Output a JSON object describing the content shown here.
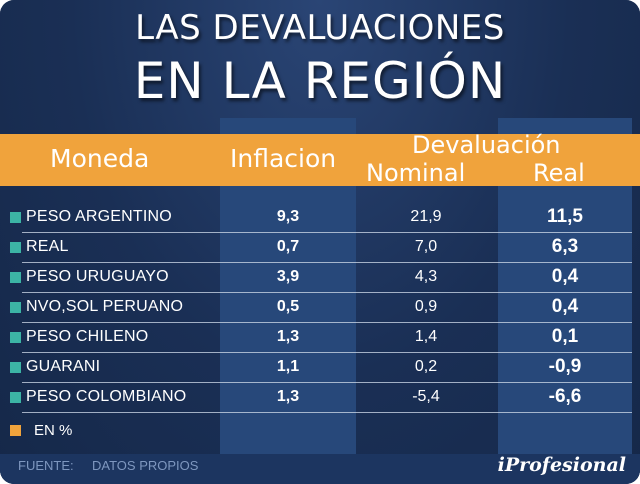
{
  "title": {
    "line1": "LAS DEVALUACIONES",
    "line2": "EN LA REGIÓN"
  },
  "chart_data": {
    "type": "table",
    "columns": {
      "moneda": "Moneda",
      "inflacion": "Inflacion",
      "devaluacion": "Devaluación",
      "nominal": "Nominal",
      "real": "Real"
    },
    "rows": [
      {
        "moneda": "PESO ARGENTINO",
        "inflacion": "9,3",
        "nominal": "21,9",
        "real": "11,5"
      },
      {
        "moneda": "REAL",
        "inflacion": "0,7",
        "nominal": "7,0",
        "real": "6,3"
      },
      {
        "moneda": "PESO URUGUAYO",
        "inflacion": "3,9",
        "nominal": "4,3",
        "real": "0,4"
      },
      {
        "moneda": "NVO,SOL PERUANO",
        "inflacion": "0,5",
        "nominal": "0,9",
        "real": "0,4"
      },
      {
        "moneda": "PESO CHILENO",
        "inflacion": "1,3",
        "nominal": "1,4",
        "real": "0,1"
      },
      {
        "moneda": "GUARANI",
        "inflacion": "1,1",
        "nominal": "0,2",
        "real": "-0,9"
      },
      {
        "moneda": "PESO COLOMBIANO",
        "inflacion": "1,3",
        "nominal": "-5,4",
        "real": "-6,6"
      }
    ],
    "legend": "EN %"
  },
  "footer": {
    "source_label": "FUENTE:",
    "source_value": "DATOS PROPIOS",
    "brand": "iProfesional"
  },
  "colors": {
    "background": "#1a2f55",
    "column_highlight": "#27487a",
    "header_bar": "#f0a33c",
    "row_bullet": "#3cb4a5",
    "legend_box": "#f0a33c"
  }
}
